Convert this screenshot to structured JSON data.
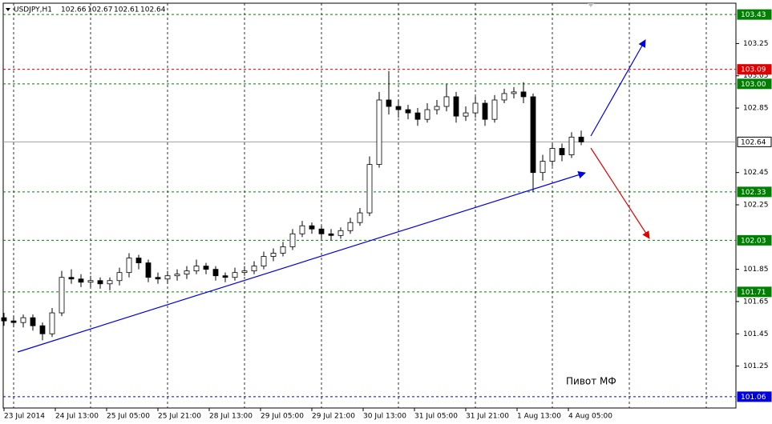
{
  "chart_data": {
    "type": "candlestick",
    "header": {
      "symbol": "USDJPY,H1",
      "open": 102.66,
      "high": 102.67,
      "low": 102.61,
      "close": 102.64
    },
    "annotation": "Пивот МФ",
    "x": [
      0,
      3,
      6,
      9,
      12,
      15,
      18,
      21,
      24,
      27,
      30,
      33,
      36,
      39,
      42,
      45,
      48,
      51,
      54,
      57,
      60,
      63,
      66,
      69,
      72,
      75,
      78,
      81,
      84,
      87,
      90,
      93,
      96,
      99,
      102,
      105,
      108,
      111,
      114,
      117,
      120,
      123,
      126,
      129,
      132,
      135,
      138,
      141,
      144,
      147,
      150,
      153,
      156,
      159,
      162,
      165,
      168,
      171,
      174,
      177,
      180
    ],
    "open": [
      101.55,
      101.53,
      101.52,
      101.55,
      101.5,
      101.45,
      101.58,
      101.8,
      101.79,
      101.77,
      101.78,
      101.76,
      101.78,
      101.83,
      101.92,
      101.89,
      101.8,
      101.79,
      101.81,
      101.82,
      101.84,
      101.87,
      101.85,
      101.81,
      101.8,
      101.83,
      101.84,
      101.87,
      101.93,
      101.95,
      101.99,
      102.07,
      102.12,
      102.1,
      102.07,
      102.06,
      102.09,
      102.14,
      102.2,
      102.5,
      102.9,
      102.86,
      102.84,
      102.82,
      102.78,
      102.84,
      102.86,
      102.92,
      102.8,
      102.82,
      102.88,
      102.78,
      102.9,
      102.94,
      102.95,
      102.92,
      102.45,
      102.52,
      102.6,
      102.56,
      102.67
    ],
    "high": [
      101.58,
      101.56,
      101.57,
      101.57,
      101.52,
      101.61,
      101.84,
      101.85,
      101.82,
      101.81,
      101.8,
      101.8,
      101.86,
      101.95,
      101.94,
      101.91,
      101.83,
      101.84,
      101.85,
      101.87,
      101.91,
      101.89,
      101.87,
      101.83,
      101.86,
      101.87,
      101.9,
      101.96,
      101.98,
      102.02,
      102.1,
      102.15,
      102.14,
      102.12,
      102.1,
      102.11,
      102.17,
      102.23,
      102.55,
      102.95,
      103.08,
      102.9,
      102.87,
      102.85,
      102.88,
      102.9,
      103.0,
      102.95,
      102.86,
      102.92,
      102.9,
      102.93,
      102.97,
      102.98,
      103.01,
      102.94,
      102.56,
      102.63,
      102.63,
      102.7,
      102.71
    ],
    "low": [
      101.5,
      101.49,
      101.49,
      101.47,
      101.41,
      101.43,
      101.56,
      101.76,
      101.74,
      101.74,
      101.73,
      101.72,
      101.75,
      101.8,
      101.85,
      101.77,
      101.76,
      101.76,
      101.78,
      101.79,
      101.82,
      101.82,
      101.78,
      101.77,
      101.78,
      101.81,
      101.82,
      101.85,
      101.9,
      101.93,
      101.97,
      102.05,
      102.07,
      102.04,
      102.03,
      102.04,
      102.07,
      102.12,
      102.18,
      102.48,
      102.81,
      102.79,
      102.78,
      102.74,
      102.76,
      102.81,
      102.83,
      102.76,
      102.77,
      102.79,
      102.74,
      102.76,
      102.88,
      102.91,
      102.88,
      102.33,
      102.4,
      102.49,
      102.52,
      102.54,
      102.62
    ],
    "close": [
      101.53,
      101.52,
      101.55,
      101.5,
      101.45,
      101.58,
      101.8,
      101.79,
      101.77,
      101.78,
      101.76,
      101.78,
      101.83,
      101.92,
      101.89,
      101.8,
      101.79,
      101.81,
      101.82,
      101.84,
      101.87,
      101.85,
      101.81,
      101.8,
      101.83,
      101.84,
      101.87,
      101.93,
      101.95,
      101.99,
      102.07,
      102.12,
      102.1,
      102.07,
      102.06,
      102.09,
      102.14,
      102.2,
      102.5,
      102.9,
      102.86,
      102.84,
      102.82,
      102.78,
      102.84,
      102.86,
      102.92,
      102.8,
      102.82,
      102.88,
      102.78,
      102.9,
      102.94,
      102.95,
      102.92,
      102.45,
      102.52,
      102.6,
      102.56,
      102.67,
      102.64
    ],
    "xlim": [
      -1.25,
      228.25
    ],
    "xticks": [
      {
        "value": 0,
        "label": "23 Jul 2014"
      },
      {
        "value": 16,
        "label": "24 Jul 13:00"
      },
      {
        "value": 32,
        "label": "25 Jul 05:00"
      },
      {
        "value": 48,
        "label": "25 Jul 21:00"
      },
      {
        "value": 64,
        "label": "28 Jul 13:00"
      },
      {
        "value": 80,
        "label": "29 Jul 05:00"
      },
      {
        "value": 96,
        "label": "29 Jul 21:00"
      },
      {
        "value": 112,
        "label": "30 Jul 13:00"
      },
      {
        "value": 128,
        "label": "31 Jul 05:00"
      },
      {
        "value": 144,
        "label": "31 Jul 21:00"
      },
      {
        "value": 160,
        "label": "1 Aug 13:00"
      },
      {
        "value": 176,
        "label": "4 Aug 05:00"
      }
    ],
    "xgrid": [
      3,
      27,
      51,
      75,
      99,
      123,
      147,
      171,
      195,
      219
    ],
    "ylim": [
      100.99,
      103.52
    ],
    "yticks": [
      103.25,
      103.05,
      102.85,
      102.45,
      102.25,
      101.85,
      101.65,
      101.45,
      101.25
    ],
    "levels": [
      {
        "value": 103.43,
        "label": "103.43",
        "color": "#008000"
      },
      {
        "value": 103.09,
        "label": "103.09",
        "color": "#e00000"
      },
      {
        "value": 103.0,
        "label": "103.00",
        "color": "#008000"
      },
      {
        "value": 102.64,
        "label": "102.64",
        "color": "#a0a0a0"
      },
      {
        "value": 102.33,
        "label": "102.33",
        "color": "#008000"
      },
      {
        "value": 102.03,
        "label": "102.03",
        "color": "#008000"
      },
      {
        "value": 101.71,
        "label": "101.71",
        "color": "#008000"
      },
      {
        "value": 101.06,
        "label": "101.06",
        "color": "#0000e0"
      }
    ]
  }
}
